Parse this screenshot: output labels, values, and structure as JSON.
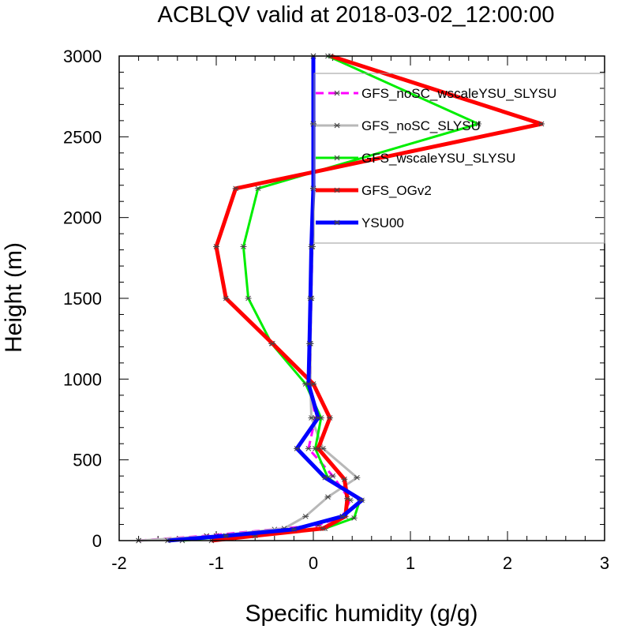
{
  "chart_data": {
    "type": "line",
    "title": "ACBLQV valid at 2018-03-02_12:00:00",
    "xlabel": "Specific humidity (g/g)",
    "ylabel": "Height (m)",
    "xlim": [
      -2,
      3
    ],
    "ylim": [
      0,
      3000
    ],
    "xticks": [
      "-2",
      "-1",
      "0",
      "1",
      "2",
      "3"
    ],
    "yticks": [
      "0",
      "500",
      "1000",
      "1500",
      "2000",
      "2500",
      "3000"
    ],
    "legend_position": "top-right",
    "series": [
      {
        "name": "GFS_noSC_wscaleYSU_SLYSU",
        "color": "#ff00ff",
        "style": "dashed",
        "width": 3,
        "points": [
          [
            -1.8,
            0
          ],
          [
            -1.1,
            30
          ],
          [
            -0.4,
            70
          ],
          [
            0.05,
            95
          ],
          [
            0.3,
            150
          ],
          [
            0.38,
            250
          ],
          [
            0.2,
            400
          ],
          [
            -0.05,
            570
          ],
          [
            0.02,
            760
          ],
          [
            -0.03,
            970
          ],
          [
            -0.03,
            1220
          ],
          [
            -0.02,
            1500
          ],
          [
            -0.01,
            1820
          ],
          [
            0,
            2180
          ],
          [
            0,
            2580
          ],
          [
            0,
            3000
          ]
        ]
      },
      {
        "name": "GFS_noSC_SLYSU",
        "color": "#b8b8b8",
        "style": "solid",
        "width": 3,
        "points": [
          [
            -1.8,
            0
          ],
          [
            -1.0,
            30
          ],
          [
            -0.3,
            75
          ],
          [
            -0.08,
            150
          ],
          [
            0.15,
            270
          ],
          [
            0.45,
            390
          ],
          [
            0.1,
            570
          ],
          [
            -0.02,
            760
          ],
          [
            -0.03,
            970
          ],
          [
            -0.03,
            1220
          ],
          [
            -0.02,
            1500
          ],
          [
            -0.01,
            1820
          ],
          [
            0,
            2180
          ],
          [
            0,
            2580
          ],
          [
            0,
            3000
          ]
        ]
      },
      {
        "name": "GFS_wscaleYSU_SLYSU",
        "color": "#00ee00",
        "style": "solid",
        "width": 3,
        "points": [
          [
            -1.35,
            0
          ],
          [
            -0.8,
            30
          ],
          [
            0.12,
            75
          ],
          [
            0.42,
            140
          ],
          [
            0.48,
            250
          ],
          [
            0.15,
            390
          ],
          [
            0.02,
            570
          ],
          [
            0.08,
            760
          ],
          [
            -0.08,
            970
          ],
          [
            -0.43,
            1220
          ],
          [
            -0.67,
            1500
          ],
          [
            -0.72,
            1820
          ],
          [
            -0.57,
            2180
          ],
          [
            1.7,
            2580
          ],
          [
            0.15,
            3000
          ]
        ]
      },
      {
        "name": "GFS_OGv2",
        "color": "#ff0000",
        "style": "solid",
        "width": 5,
        "points": [
          [
            -1.05,
            0
          ],
          [
            -0.6,
            30
          ],
          [
            0.1,
            75
          ],
          [
            0.33,
            150
          ],
          [
            0.35,
            260
          ],
          [
            0.32,
            380
          ],
          [
            0.05,
            570
          ],
          [
            0.17,
            760
          ],
          [
            0.0,
            970
          ],
          [
            -0.42,
            1220
          ],
          [
            -0.9,
            1500
          ],
          [
            -1.0,
            1820
          ],
          [
            -0.8,
            2180
          ],
          [
            2.35,
            2580
          ],
          [
            0.18,
            3000
          ]
        ]
      },
      {
        "name": "YSU00",
        "color": "#0000ff",
        "style": "solid",
        "width": 5,
        "points": [
          [
            -1.5,
            0
          ],
          [
            -0.9,
            30
          ],
          [
            -0.2,
            70
          ],
          [
            0.3,
            150
          ],
          [
            0.5,
            250
          ],
          [
            0.12,
            390
          ],
          [
            -0.17,
            570
          ],
          [
            0.05,
            760
          ],
          [
            -0.05,
            970
          ],
          [
            -0.04,
            1220
          ],
          [
            -0.03,
            1500
          ],
          [
            -0.02,
            1820
          ],
          [
            0,
            2180
          ],
          [
            0,
            2580
          ],
          [
            0,
            3000
          ]
        ]
      }
    ]
  }
}
